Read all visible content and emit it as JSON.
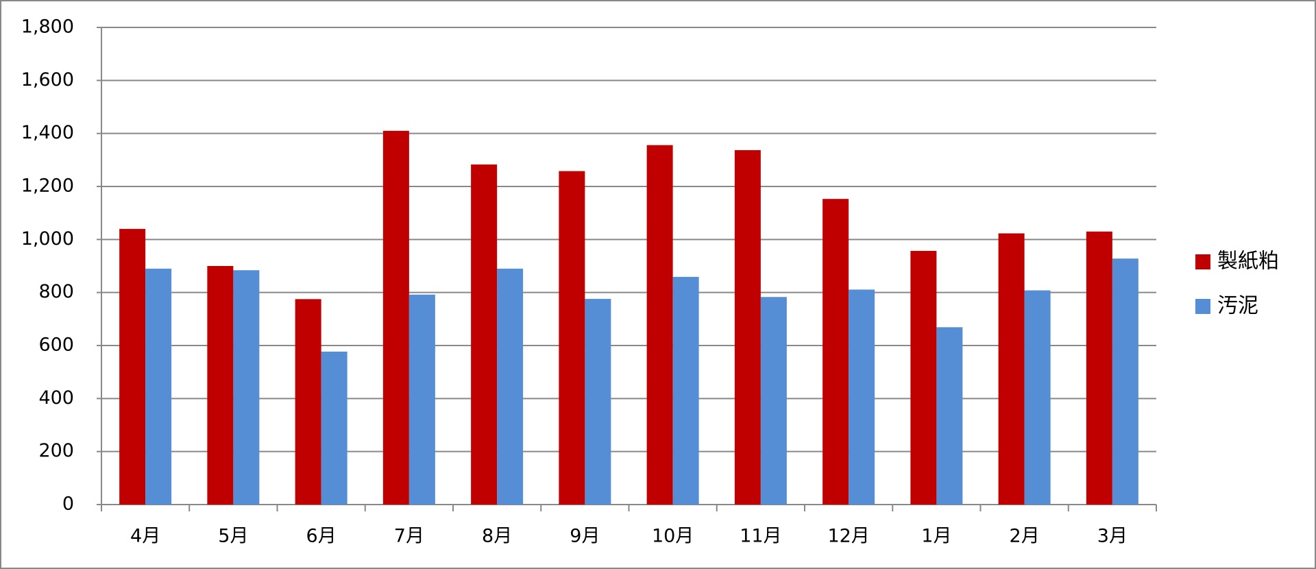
{
  "chart_data": {
    "type": "bar",
    "categories": [
      "4月",
      "5月",
      "6月",
      "7月",
      "8月",
      "9月",
      "10月",
      "11月",
      "12月",
      "1月",
      "2月",
      "3月"
    ],
    "series": [
      {
        "name": "製紙粕",
        "color": "#c00000",
        "values": [
          1040,
          900,
          775,
          1410,
          1283,
          1258,
          1356,
          1337,
          1153,
          957,
          1023,
          1030
        ]
      },
      {
        "name": "汚泥",
        "color": "#558ed5",
        "values": [
          890,
          884,
          577,
          792,
          890,
          776,
          859,
          783,
          811,
          669,
          808,
          928
        ]
      }
    ],
    "ylim": [
      0,
      1800
    ],
    "yticks": [
      0,
      200,
      400,
      600,
      800,
      {
        "value": 1000,
        "label": "1,000"
      },
      {
        "value": 1200,
        "label": "1,200"
      },
      {
        "value": 1400,
        "label": "1,400"
      },
      {
        "value": 1600,
        "label": "1,600"
      },
      {
        "value": 1800,
        "label": "1,800"
      }
    ],
    "grid": true,
    "legend": "right"
  }
}
